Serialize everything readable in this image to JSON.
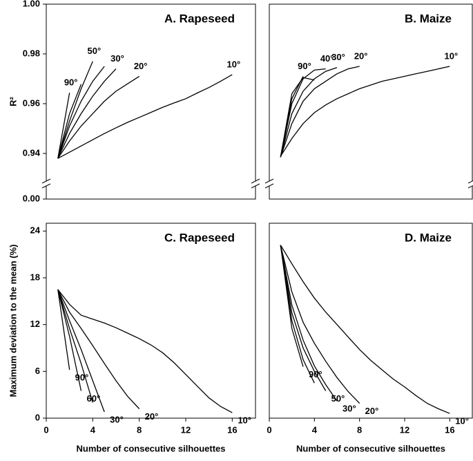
{
  "chart_data": [
    {
      "type": "line",
      "title": "A. Rapeseed",
      "ylabel": "R²",
      "xlim": [
        0,
        18
      ],
      "ylim": [
        0,
        1
      ],
      "axis_break": [
        0,
        0.93
      ],
      "yticks": [
        {
          "value": 0,
          "label": "0.00"
        },
        0.94,
        0.96,
        0.98,
        {
          "value": 1,
          "label": "1.00"
        }
      ],
      "color": "#000000",
      "series": [
        {
          "name": "10°",
          "x": [
            1,
            2,
            3,
            4,
            5,
            6,
            7,
            8,
            9,
            10,
            11,
            12,
            13,
            14,
            15,
            16
          ],
          "values": [
            0.938,
            0.9405,
            0.943,
            0.9455,
            0.948,
            0.9503,
            0.9525,
            0.9545,
            0.9565,
            0.9585,
            0.9603,
            0.962,
            0.9643,
            0.9665,
            0.969,
            0.9717
          ]
        },
        {
          "name": "20°",
          "x": [
            1,
            2,
            3,
            4,
            5,
            6,
            7,
            8
          ],
          "values": [
            0.938,
            0.945,
            0.951,
            0.956,
            0.961,
            0.965,
            0.968,
            0.971
          ]
        },
        {
          "name": "30°",
          "x": [
            1,
            2,
            3,
            4,
            5,
            6
          ],
          "values": [
            0.938,
            0.948,
            0.956,
            0.963,
            0.969,
            0.974
          ]
        },
        {
          "name": null,
          "x": [
            1,
            2,
            3,
            4,
            5
          ],
          "values": [
            0.938,
            0.951,
            0.961,
            0.969,
            0.975
          ]
        },
        {
          "name": "50°",
          "x": [
            1,
            2,
            3,
            4
          ],
          "values": [
            0.938,
            0.953,
            0.966,
            0.977
          ]
        },
        {
          "name": null,
          "x": [
            1,
            2,
            3
          ],
          "values": [
            0.938,
            0.956,
            0.9678
          ]
        },
        {
          "name": "90°",
          "x": [
            1,
            2
          ],
          "values": [
            0.938,
            0.9644
          ]
        }
      ]
    },
    {
      "type": "line",
      "title": "B. Maize",
      "xlim": [
        0,
        18
      ],
      "ylim": [
        0,
        1
      ],
      "axis_break": [
        0,
        0.93
      ],
      "color": "#000000",
      "series": [
        {
          "name": "10°",
          "x": [
            1,
            2,
            3,
            4,
            5,
            6,
            7,
            8,
            9,
            10,
            11,
            12,
            13,
            14,
            15,
            16
          ],
          "values": [
            0.9389,
            0.946,
            0.952,
            0.9564,
            0.9595,
            0.962,
            0.964,
            0.966,
            0.9675,
            0.969,
            0.97,
            0.971,
            0.972,
            0.973,
            0.974,
            0.975
          ]
        },
        {
          "name": "20°",
          "x": [
            1,
            2,
            3,
            4,
            5,
            6,
            7,
            8
          ],
          "values": [
            0.9385,
            0.952,
            0.961,
            0.966,
            0.969,
            0.972,
            0.974,
            0.975
          ]
        },
        {
          "name": "30°",
          "x": [
            1,
            2,
            3,
            4,
            5,
            6
          ],
          "values": [
            0.9385,
            0.956,
            0.965,
            0.97,
            0.973,
            0.9745
          ]
        },
        {
          "name": "40°",
          "x": [
            1,
            2,
            3,
            4,
            5
          ],
          "values": [
            0.9385,
            0.96,
            0.97,
            0.9735,
            0.974
          ]
        },
        {
          "name": null,
          "x": [
            1,
            2,
            3,
            4
          ],
          "values": [
            0.9385,
            0.964,
            0.9705,
            0.9695
          ]
        },
        {
          "name": "90°",
          "x": [
            1,
            2,
            3
          ],
          "values": [
            0.9385,
            0.962,
            0.971
          ]
        }
      ]
    },
    {
      "type": "line",
      "title": "C. Rapeseed",
      "ylabel": "Maximum deviation to the mean (%)",
      "xlabel": "Number of consecutive silhouettes",
      "xlim": [
        0,
        18
      ],
      "xticks": [
        0,
        4,
        8,
        12,
        16
      ],
      "ylim": [
        0,
        25
      ],
      "yticks": [
        0,
        6,
        12,
        18,
        24
      ],
      "color": "#000000",
      "series": [
        {
          "name": "10°",
          "x": [
            1,
            2,
            3,
            4,
            5,
            6,
            7,
            8,
            9,
            10,
            11,
            12,
            13,
            14,
            15,
            16
          ],
          "values": [
            16.5,
            14.6,
            13.2,
            12.7,
            12.2,
            11.6,
            10.9,
            10.2,
            9.4,
            8.4,
            7.1,
            5.6,
            4.1,
            2.6,
            1.5,
            0.7
          ]
        },
        {
          "name": "20°",
          "x": [
            1,
            2,
            3,
            4,
            5,
            6,
            7,
            8
          ],
          "values": [
            16.5,
            13.6,
            11.5,
            9.3,
            7,
            4.8,
            2.8,
            1.2
          ]
        },
        {
          "name": "30°",
          "x": [
            1,
            2,
            3,
            4,
            5
          ],
          "values": [
            16.5,
            12.5,
            8.8,
            4.8,
            0.8
          ]
        },
        {
          "name": null,
          "x": [
            1,
            2,
            3,
            4
          ],
          "values": [
            16.5,
            11.5,
            7,
            2
          ]
        },
        {
          "name": "60°",
          "x": [
            1,
            2,
            3
          ],
          "values": [
            16.5,
            10.5,
            3.5
          ]
        },
        {
          "name": "90°",
          "x": [
            1,
            2
          ],
          "values": [
            16.5,
            6.2
          ]
        }
      ]
    },
    {
      "type": "line",
      "title": "D. Maize",
      "xlabel": "Number of consecutive silhouettes",
      "xlim": [
        0,
        18
      ],
      "xticks": [
        0,
        4,
        8,
        12,
        16
      ],
      "ylim": [
        0,
        25
      ],
      "color": "#000000",
      "series": [
        {
          "name": "10°",
          "x": [
            1,
            2,
            3,
            4,
            5,
            6,
            7,
            8,
            9,
            10,
            11,
            12,
            13,
            14,
            15,
            16
          ],
          "values": [
            22.2,
            19.8,
            17.5,
            15.4,
            13.6,
            12,
            10.4,
            8.8,
            7.4,
            6.2,
            5,
            4,
            2.9,
            1.9,
            1.2,
            0.6
          ]
        },
        {
          "name": "20°",
          "x": [
            1,
            2,
            3,
            4,
            5,
            6,
            7,
            8
          ],
          "values": [
            22.2,
            16.2,
            12.3,
            9.6,
            7.3,
            5.2,
            3.4,
            1.9
          ]
        },
        {
          "name": "30°",
          "x": [
            1,
            2,
            3,
            4,
            5,
            6
          ],
          "values": [
            22.2,
            14.5,
            10,
            6.7,
            4.3,
            2.2
          ]
        },
        {
          "name": "50°",
          "x": [
            1,
            2,
            3,
            4,
            5
          ],
          "values": [
            22.2,
            13.5,
            9,
            6,
            3.5
          ]
        },
        {
          "name": null,
          "x": [
            1,
            2,
            3,
            4
          ],
          "values": [
            22.2,
            12.5,
            7.5,
            4.5
          ]
        },
        {
          "name": "90°",
          "x": [
            1,
            2,
            3
          ],
          "values": [
            22.2,
            11.5,
            6.6
          ]
        }
      ]
    }
  ]
}
